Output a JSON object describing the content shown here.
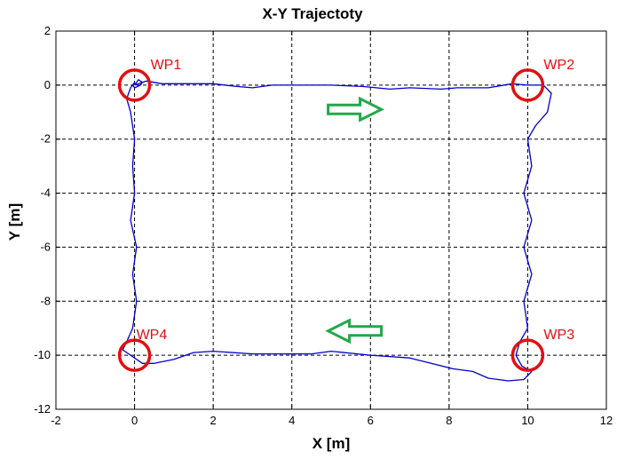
{
  "chart_data": {
    "type": "line",
    "title": "X-Y Trajectoty",
    "xlabel": "X [m]",
    "ylabel": "Y [m]",
    "xlim": [
      -2,
      12
    ],
    "ylim": [
      -12,
      2
    ],
    "xticks": [
      -2,
      0,
      2,
      4,
      6,
      8,
      10,
      12
    ],
    "yticks": [
      2,
      0,
      -2,
      -4,
      -6,
      -8,
      -10,
      -12
    ],
    "grid": true,
    "series": [
      {
        "color": "#0000cc",
        "x": [
          0.0,
          0.3,
          0.7,
          1.2,
          2.0,
          2.6,
          3.0,
          3.5,
          4.0,
          5.0,
          5.8,
          6.5,
          7.0,
          7.8,
          8.2,
          9.0,
          9.6,
          10.0,
          10.4,
          10.6,
          10.5,
          10.2,
          10.0,
          10.1,
          9.9,
          10.1,
          9.9,
          10.1,
          9.9,
          10.0,
          9.8,
          9.7,
          9.85,
          10.1,
          9.9,
          9.5,
          9.0,
          8.6,
          8.1,
          7.0,
          6.0,
          5.0,
          4.5,
          4.0,
          3.0,
          2.0,
          1.5,
          1.0,
          0.5,
          0.2,
          -0.1,
          -0.3,
          -0.2,
          -0.05,
          0.05,
          -0.05,
          0.05,
          -0.1,
          0.0,
          -0.05,
          0.0,
          -0.1,
          -0.2,
          -0.1,
          0.0,
          -0.05,
          0.0,
          0.15,
          0.2,
          0.1,
          0.0
        ],
        "y": [
          0.0,
          0.15,
          0.05,
          0.05,
          0.05,
          -0.05,
          -0.1,
          0.0,
          0.0,
          0.0,
          -0.05,
          -0.15,
          -0.1,
          -0.15,
          -0.1,
          -0.1,
          0.05,
          0.0,
          0.0,
          -0.3,
          -1.0,
          -1.5,
          -2.0,
          -3.0,
          -4.0,
          -5.0,
          -6.0,
          -7.0,
          -8.0,
          -9.0,
          -9.5,
          -10.0,
          -10.4,
          -10.6,
          -10.9,
          -10.95,
          -10.85,
          -10.6,
          -10.5,
          -10.1,
          -10.0,
          -9.85,
          -9.95,
          -9.95,
          -9.95,
          -9.85,
          -9.9,
          -10.15,
          -10.3,
          -10.3,
          -10.0,
          -9.8,
          -9.5,
          -9.0,
          -8.0,
          -7.0,
          -6.0,
          -5.0,
          -4.0,
          -3.0,
          -2.0,
          -1.0,
          -0.5,
          -0.1,
          0.1,
          0.0,
          -0.1,
          0.0,
          0.1,
          0.2,
          0.0
        ]
      }
    ],
    "annotations": {
      "waypoints": [
        {
          "label": "WP1",
          "x": 0,
          "y": 0,
          "text_pos": "upper-right"
        },
        {
          "label": "WP2",
          "x": 10,
          "y": 0,
          "text_pos": "upper-right"
        },
        {
          "label": "WP3",
          "x": 10,
          "y": -10,
          "text_pos": "upper-right"
        },
        {
          "label": "WP4",
          "x": 0,
          "y": -10,
          "text_pos": "upper-left"
        }
      ],
      "arrows": [
        {
          "direction": "right",
          "x": 5.6,
          "y": -0.9
        },
        {
          "direction": "left",
          "x": 5.6,
          "y": -9.1
        }
      ],
      "waypoint_color": "#e01010",
      "arrow_color": "#22a84a"
    }
  }
}
